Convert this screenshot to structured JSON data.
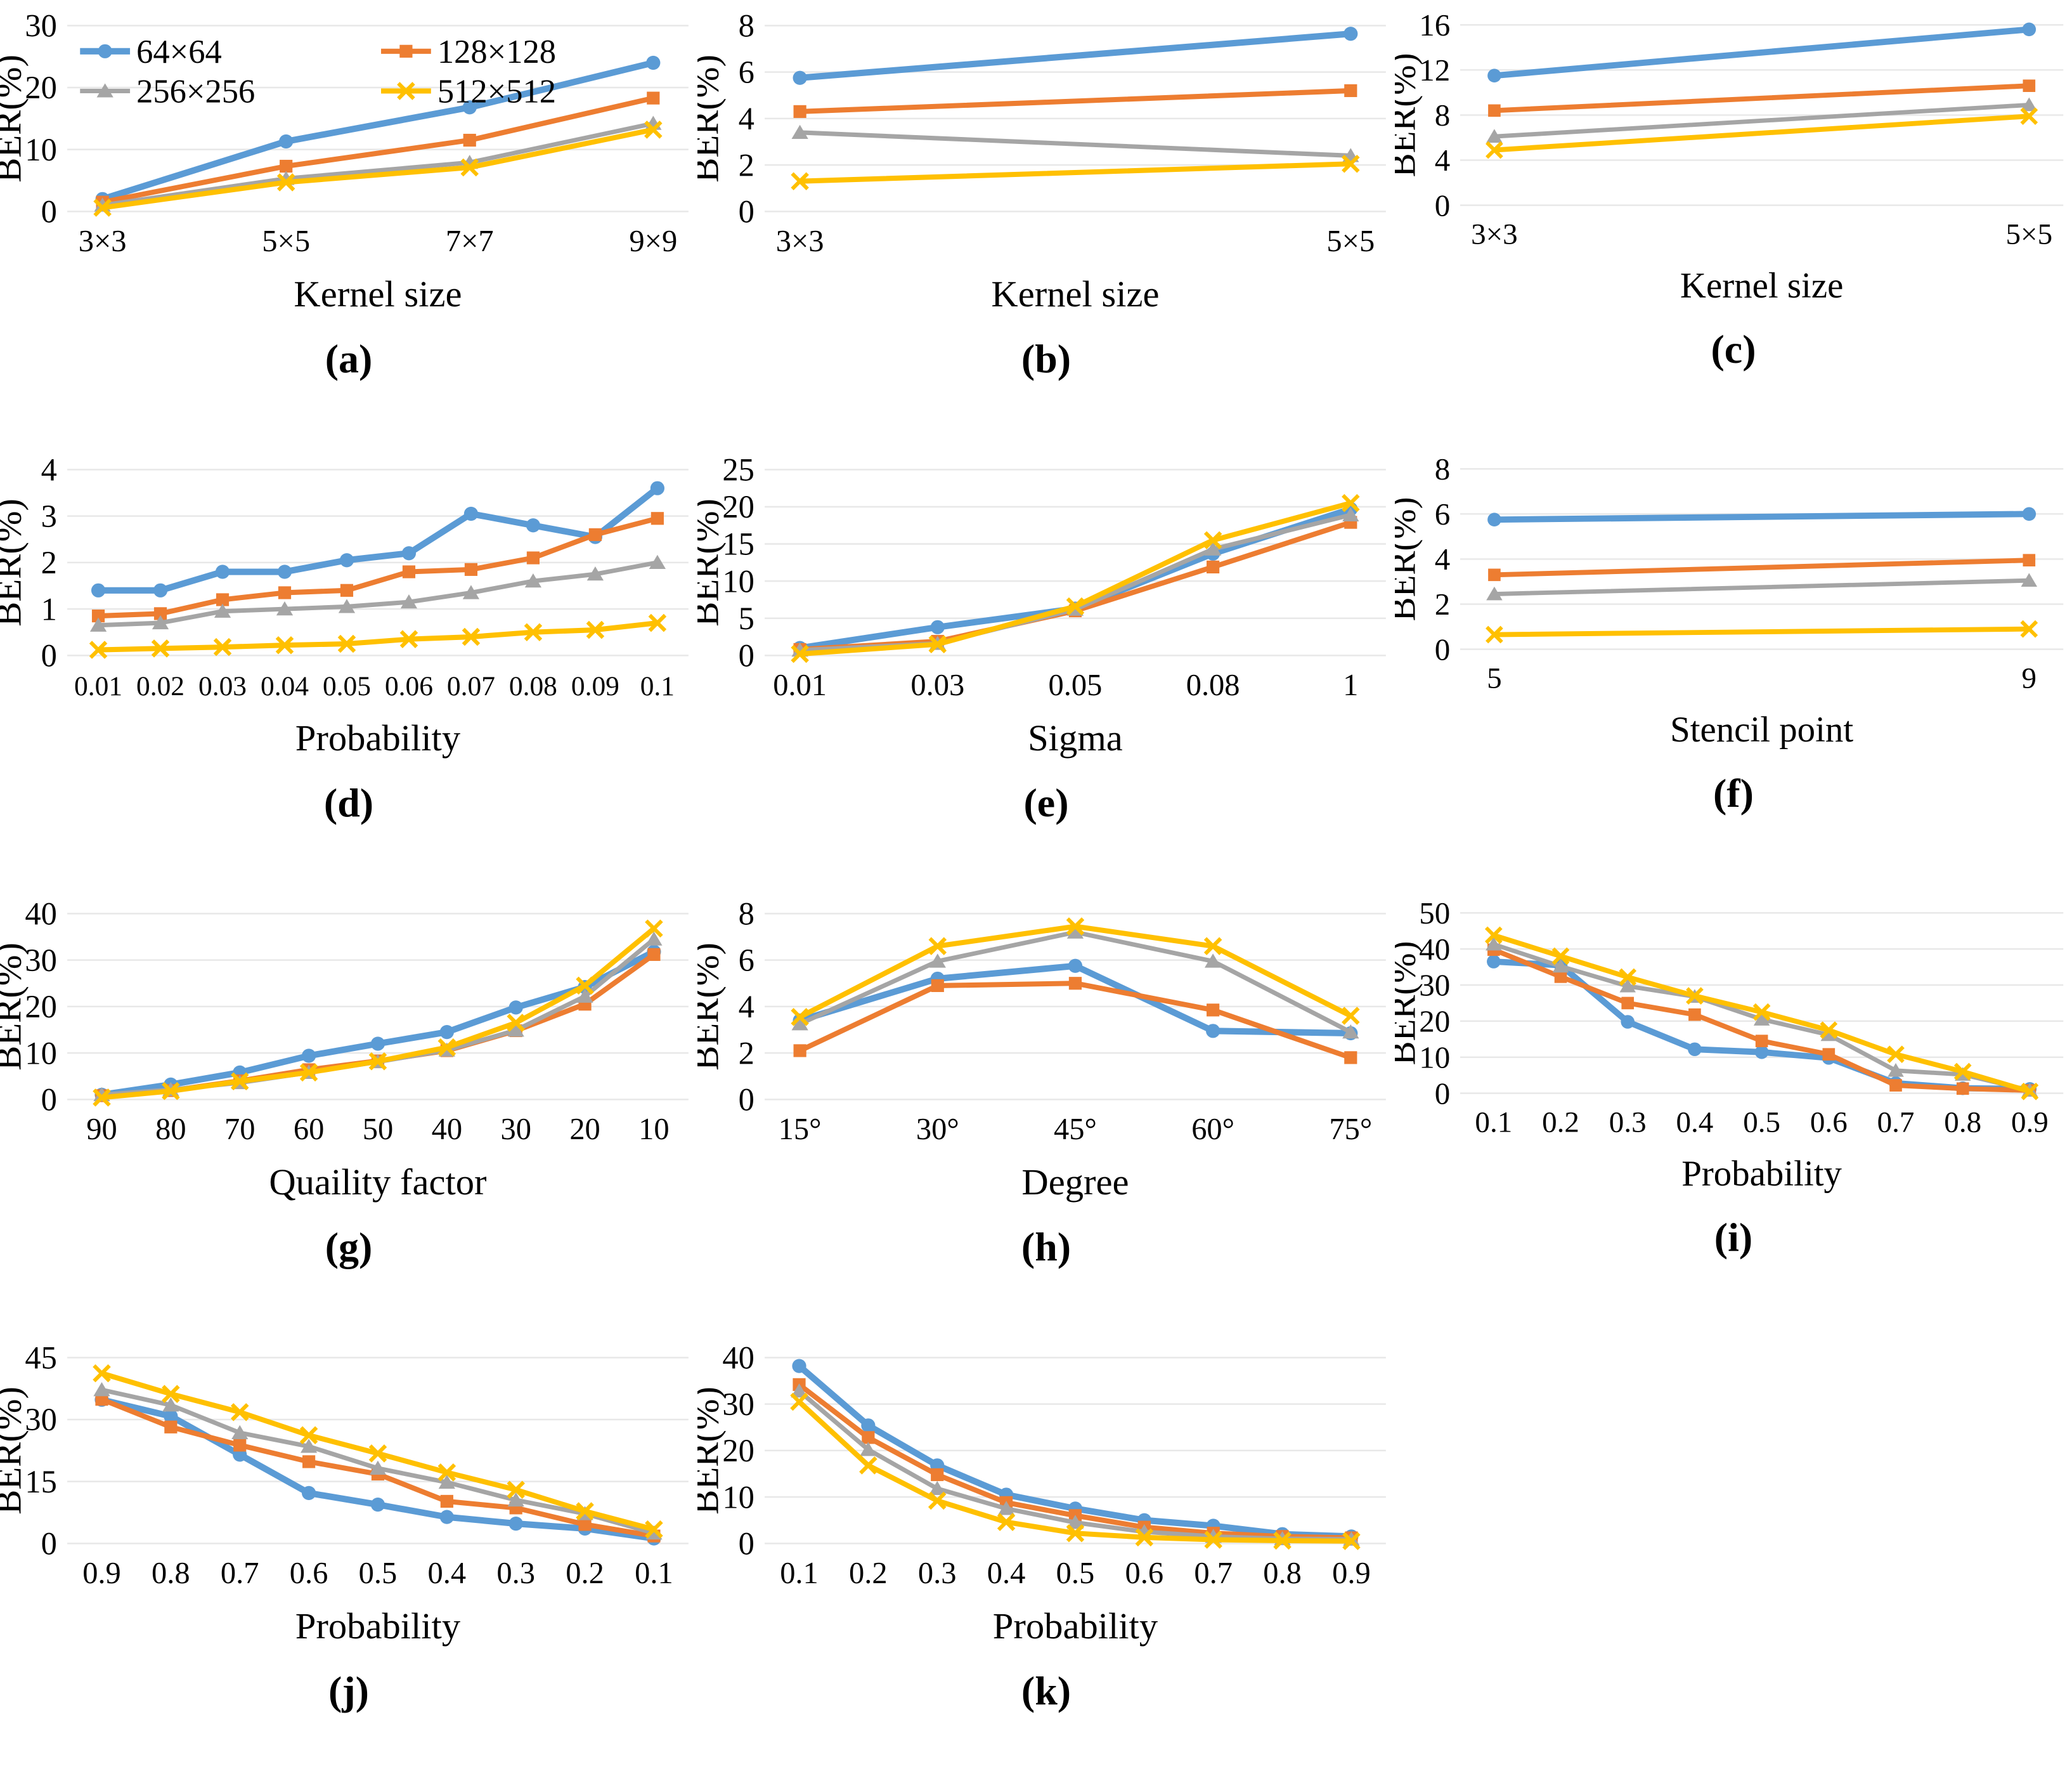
{
  "figure": {
    "ylabel": "BER(%)",
    "series_names": [
      "64×64",
      "128×128",
      "256×256",
      "512×512"
    ],
    "series_colors": [
      "#5B9BD5",
      "#ED7D31",
      "#A5A5A5",
      "#FFC000"
    ],
    "series_markers": [
      "circle",
      "square",
      "triangle",
      "x"
    ],
    "series_widths": [
      10,
      8,
      7,
      8
    ],
    "gridline_color": "#e8e8e8"
  },
  "chart_data": [
    {
      "type": "line",
      "caption": "(a)",
      "xlabel": "Kernel size",
      "ylabel": "BER(%)",
      "categories": [
        "3×3",
        "5×5",
        "7×7",
        "9×9"
      ],
      "ylim": [
        0,
        30
      ],
      "yticks": [
        0,
        10,
        20,
        30
      ],
      "legend": true,
      "grid": true,
      "series": [
        {
          "name": "64×64",
          "values": [
            2.0,
            11.3,
            16.8,
            24.0
          ]
        },
        {
          "name": "128×128",
          "values": [
            1.5,
            7.3,
            11.5,
            18.3
          ]
        },
        {
          "name": "256×256",
          "values": [
            1.0,
            5.3,
            7.9,
            14.2
          ]
        },
        {
          "name": "512×512",
          "values": [
            0.6,
            4.7,
            7.1,
            13.2
          ]
        }
      ]
    },
    {
      "type": "line",
      "caption": "(b)",
      "xlabel": "Kernel size",
      "ylabel": "BER(%)",
      "categories": [
        "3×3",
        "5×5"
      ],
      "ylim": [
        0,
        8
      ],
      "yticks": [
        0,
        2,
        4,
        6,
        8
      ],
      "legend": false,
      "grid": true,
      "series": [
        {
          "name": "64×64",
          "values": [
            5.75,
            7.65
          ]
        },
        {
          "name": "128×128",
          "values": [
            4.3,
            5.2
          ]
        },
        {
          "name": "256×256",
          "values": [
            3.4,
            2.4
          ]
        },
        {
          "name": "512×512",
          "values": [
            1.3,
            2.05
          ]
        }
      ]
    },
    {
      "type": "line",
      "caption": "(c)",
      "xlabel": "Kernel size",
      "ylabel": "BER(%)",
      "categories": [
        "3×3",
        "5×5"
      ],
      "ylim": [
        0,
        16
      ],
      "yticks": [
        0,
        4,
        8,
        12,
        16
      ],
      "legend": false,
      "grid": true,
      "series": [
        {
          "name": "64×64",
          "values": [
            11.5,
            15.6
          ]
        },
        {
          "name": "128×128",
          "values": [
            8.4,
            10.6
          ]
        },
        {
          "name": "256×256",
          "values": [
            6.1,
            8.9
          ]
        },
        {
          "name": "512×512",
          "values": [
            4.9,
            7.9
          ]
        }
      ]
    },
    {
      "type": "line",
      "caption": "(d)",
      "xlabel": "Probability",
      "ylabel": "BER(%)",
      "categories": [
        "0.01",
        "0.02",
        "0.03",
        "0.04",
        "0.05",
        "0.06",
        "0.07",
        "0.08",
        "0.09",
        "0.1"
      ],
      "ylim": [
        0,
        4
      ],
      "yticks": [
        0,
        1,
        2,
        3,
        4
      ],
      "legend": false,
      "grid": true,
      "series": [
        {
          "name": "64×64",
          "values": [
            1.4,
            1.4,
            1.8,
            1.8,
            2.05,
            2.2,
            3.05,
            2.8,
            2.55,
            3.6
          ]
        },
        {
          "name": "128×128",
          "values": [
            0.85,
            0.9,
            1.2,
            1.35,
            1.4,
            1.8,
            1.85,
            2.1,
            2.6,
            2.95
          ]
        },
        {
          "name": "256×256",
          "values": [
            0.65,
            0.7,
            0.95,
            1.0,
            1.05,
            1.15,
            1.35,
            1.6,
            1.75,
            2.0
          ]
        },
        {
          "name": "512×512",
          "values": [
            0.12,
            0.15,
            0.18,
            0.22,
            0.25,
            0.35,
            0.4,
            0.5,
            0.55,
            0.7
          ]
        }
      ]
    },
    {
      "type": "line",
      "caption": "(e)",
      "xlabel": "Sigma",
      "ylabel": "BER(%)",
      "categories": [
        "0.01",
        "0.03",
        "0.05",
        "0.08",
        "1"
      ],
      "ylim": [
        0,
        25
      ],
      "yticks": [
        0,
        5,
        10,
        15,
        20,
        25
      ],
      "legend": false,
      "grid": true,
      "series": [
        {
          "name": "64×64",
          "values": [
            1.0,
            3.8,
            6.3,
            13.7,
            19.7
          ]
        },
        {
          "name": "128×128",
          "values": [
            0.8,
            1.9,
            6.0,
            11.9,
            17.9
          ]
        },
        {
          "name": "256×256",
          "values": [
            0.7,
            1.6,
            6.2,
            14.3,
            18.9
          ]
        },
        {
          "name": "512×512",
          "values": [
            0.2,
            1.5,
            6.6,
            15.5,
            20.5
          ]
        }
      ]
    },
    {
      "type": "line",
      "caption": "(f)",
      "xlabel": "Stencil point",
      "ylabel": "BER(%)",
      "categories": [
        "5",
        "9"
      ],
      "ylim": [
        0,
        8
      ],
      "yticks": [
        0,
        2,
        4,
        6,
        8
      ],
      "legend": false,
      "grid": true,
      "series": [
        {
          "name": "64×64",
          "values": [
            5.75,
            6.0
          ]
        },
        {
          "name": "128×128",
          "values": [
            3.3,
            3.95
          ]
        },
        {
          "name": "256×256",
          "values": [
            2.45,
            3.05
          ]
        },
        {
          "name": "512×512",
          "values": [
            0.65,
            0.9
          ]
        }
      ]
    },
    {
      "type": "line",
      "caption": "(g)",
      "xlabel": "Quaility factor",
      "ylabel": "BER(%)",
      "categories": [
        "90",
        "80",
        "70",
        "60",
        "50",
        "40",
        "30",
        "20",
        "10"
      ],
      "ylim": [
        0,
        40
      ],
      "yticks": [
        0,
        10,
        20,
        30,
        40
      ],
      "legend": false,
      "grid": true,
      "series": [
        {
          "name": "64×64",
          "values": [
            1.0,
            3.2,
            5.8,
            9.4,
            12.0,
            14.5,
            19.8,
            24.2,
            31.8
          ]
        },
        {
          "name": "128×128",
          "values": [
            0.8,
            1.9,
            4.0,
            6.4,
            8.3,
            10.5,
            14.8,
            20.5,
            31.2
          ]
        },
        {
          "name": "256×256",
          "values": [
            1.0,
            2.1,
            3.6,
            5.8,
            8.1,
            10.6,
            14.9,
            22.2,
            34.5
          ]
        },
        {
          "name": "512×512",
          "values": [
            0.4,
            1.8,
            3.9,
            5.8,
            8.2,
            11.2,
            16.5,
            24.5,
            36.8
          ]
        }
      ]
    },
    {
      "type": "line",
      "caption": "(h)",
      "xlabel": "Degree",
      "ylabel": "BER(%)",
      "categories": [
        "15°",
        "30°",
        "45°",
        "60°",
        "75°"
      ],
      "ylim": [
        0,
        8
      ],
      "yticks": [
        0,
        2,
        4,
        6,
        8
      ],
      "legend": false,
      "grid": true,
      "series": [
        {
          "name": "64×64",
          "values": [
            3.4,
            5.2,
            5.75,
            2.95,
            2.85
          ]
        },
        {
          "name": "128×128",
          "values": [
            2.1,
            4.9,
            5.0,
            3.85,
            1.8
          ]
        },
        {
          "name": "256×256",
          "values": [
            3.25,
            5.95,
            7.2,
            5.95,
            2.9
          ]
        },
        {
          "name": "512×512",
          "values": [
            3.55,
            6.6,
            7.45,
            6.6,
            3.6
          ]
        }
      ]
    },
    {
      "type": "line",
      "caption": "(i)",
      "xlabel": "Probability",
      "ylabel": "BER(%)",
      "categories": [
        "0.1",
        "0.2",
        "0.3",
        "0.4",
        "0.5",
        "0.6",
        "0.7",
        "0.8",
        "0.9"
      ],
      "ylim": [
        0,
        50
      ],
      "yticks": [
        0,
        10,
        20,
        30,
        40,
        50
      ],
      "legend": false,
      "grid": true,
      "series": [
        {
          "name": "64×64",
          "values": [
            36.5,
            35.5,
            19.8,
            12.2,
            11.4,
            9.8,
            2.8,
            1.4,
            1.2
          ]
        },
        {
          "name": "128×128",
          "values": [
            39.8,
            32.3,
            25.0,
            21.8,
            14.5,
            10.8,
            2.2,
            1.3,
            0.8
          ]
        },
        {
          "name": "256×256",
          "values": [
            41.3,
            35.2,
            29.7,
            26.8,
            20.5,
            16.2,
            6.3,
            5.2,
            0.8
          ]
        },
        {
          "name": "512×512",
          "values": [
            43.8,
            38.0,
            32.2,
            27.0,
            22.5,
            17.5,
            10.8,
            6.0,
            0.5
          ]
        }
      ]
    },
    {
      "type": "line",
      "caption": "(j)",
      "xlabel": "Probability",
      "ylabel": "BER(%)",
      "categories": [
        "0.9",
        "0.8",
        "0.7",
        "0.6",
        "0.5",
        "0.4",
        "0.3",
        "0.2",
        "0.1"
      ],
      "ylim": [
        0,
        45
      ],
      "yticks": [
        0,
        15,
        30,
        45
      ],
      "legend": false,
      "grid": true,
      "series": [
        {
          "name": "64×64",
          "values": [
            34.8,
            30.8,
            21.5,
            12.2,
            9.4,
            6.4,
            4.8,
            3.6,
            1.2
          ]
        },
        {
          "name": "128×128",
          "values": [
            34.9,
            28.2,
            23.8,
            19.8,
            16.8,
            10.2,
            8.6,
            4.6,
            1.8
          ]
        },
        {
          "name": "256×256",
          "values": [
            37.2,
            33.5,
            26.8,
            23.5,
            18.2,
            14.8,
            10.5,
            7.2,
            2.5
          ]
        },
        {
          "name": "512×512",
          "values": [
            41.2,
            36.2,
            31.8,
            26.2,
            21.8,
            17.2,
            13.0,
            7.8,
            3.4
          ]
        }
      ]
    },
    {
      "type": "line",
      "caption": "(k)",
      "xlabel": "Probability",
      "ylabel": "BER(%)",
      "categories": [
        "0.1",
        "0.2",
        "0.3",
        "0.4",
        "0.5",
        "0.6",
        "0.7",
        "0.8",
        "0.9"
      ],
      "ylim": [
        0,
        40
      ],
      "yticks": [
        0,
        10,
        20,
        30,
        40
      ],
      "legend": false,
      "grid": true,
      "series": [
        {
          "name": "64×64",
          "values": [
            38.2,
            25.4,
            16.8,
            10.5,
            7.5,
            5.0,
            3.8,
            2.0,
            1.5
          ]
        },
        {
          "name": "128×128",
          "values": [
            34.2,
            22.8,
            14.8,
            8.8,
            6.0,
            3.5,
            2.2,
            1.5,
            1.2
          ]
        },
        {
          "name": "256×256",
          "values": [
            32.8,
            20.2,
            11.8,
            7.5,
            4.5,
            2.5,
            1.5,
            1.0,
            0.9
          ]
        },
        {
          "name": "512×512",
          "values": [
            30.5,
            16.8,
            9.2,
            4.6,
            2.2,
            1.3,
            0.8,
            0.6,
            0.5
          ]
        }
      ]
    }
  ]
}
